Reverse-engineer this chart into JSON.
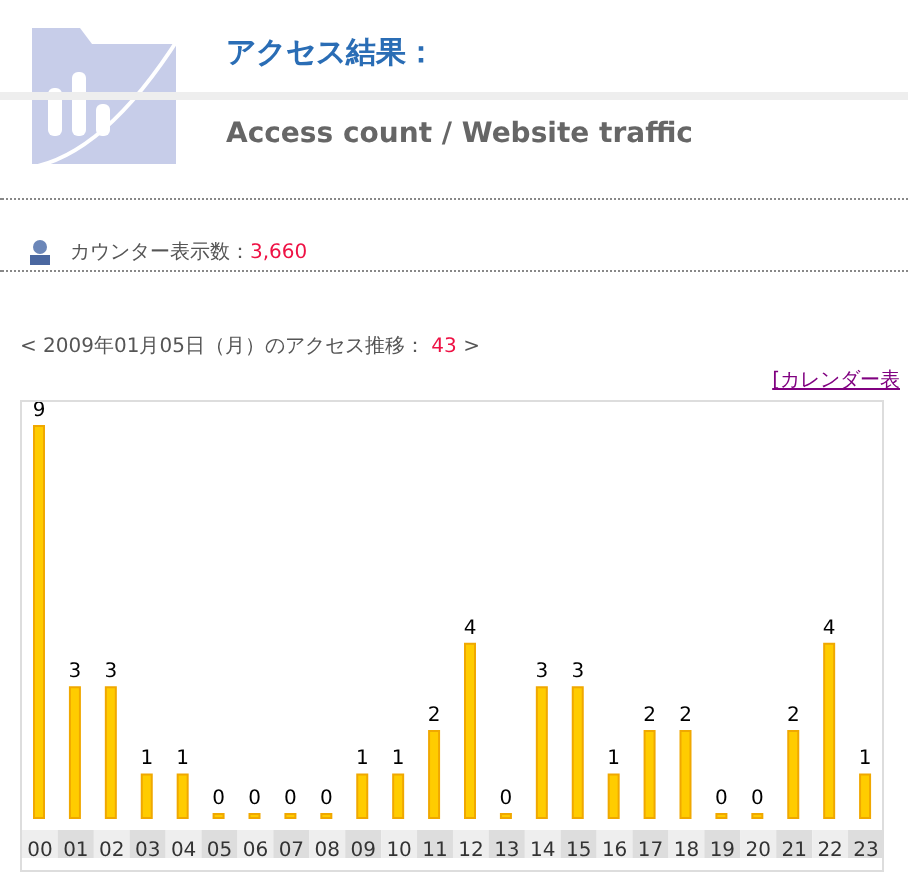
{
  "chart_data": {
    "type": "bar",
    "title": "アクセス結果：",
    "subtitle": "Access count / Website traffic",
    "annotations": [
      "カウンター表示数：",
      "3,660",
      "< 2009年01月05日（月）のアクセス推移：",
      "43",
      ">",
      "[カレンダー表"
    ],
    "categories": [
      "00",
      "01",
      "02",
      "03",
      "04",
      "05",
      "06",
      "07",
      "08",
      "09",
      "10",
      "11",
      "12",
      "13",
      "14",
      "15",
      "16",
      "17",
      "18",
      "19",
      "20",
      "21",
      "22",
      "23"
    ],
    "values": [
      9,
      3,
      3,
      1,
      1,
      0,
      0,
      0,
      0,
      1,
      1,
      2,
      4,
      0,
      3,
      3,
      1,
      2,
      2,
      0,
      0,
      2,
      4,
      1
    ],
    "color": "#ffcc00",
    "data_labels": true
  }
}
